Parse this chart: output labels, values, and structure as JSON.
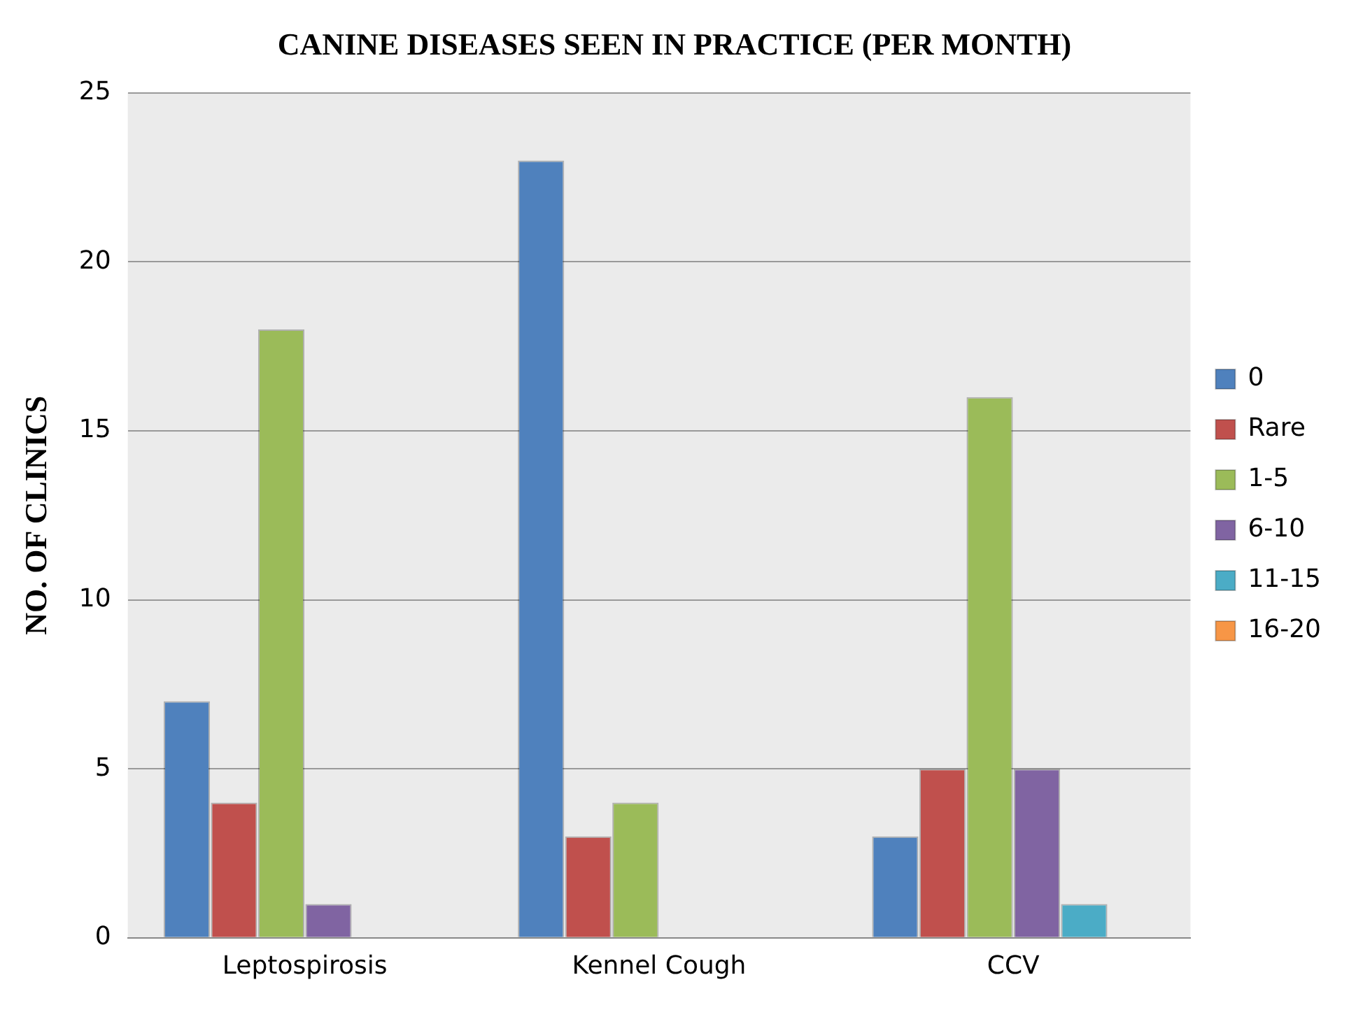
{
  "chart_data": {
    "type": "bar",
    "title": "CANINE DISEASES SEEN IN PRACTICE (PER MONTH)",
    "ylabel": "NO. OF CLINICS",
    "categories": [
      "Leptospirosis",
      "Kennel Cough",
      "CCV"
    ],
    "series": [
      {
        "name": "0",
        "color": "#4f81bd",
        "values": [
          7,
          23,
          3
        ]
      },
      {
        "name": "Rare",
        "color": "#c0504d",
        "values": [
          4,
          3,
          5
        ]
      },
      {
        "name": "1-5",
        "color": "#9bbb59",
        "values": [
          18,
          4,
          16
        ]
      },
      {
        "name": "6-10",
        "color": "#8064a2",
        "values": [
          1,
          0,
          5
        ]
      },
      {
        "name": "11-15",
        "color": "#4bacc6",
        "values": [
          0,
          0,
          1
        ]
      },
      {
        "name": "16-20",
        "color": "#f79646",
        "values": [
          0,
          0,
          0
        ]
      }
    ],
    "ylim": [
      0,
      25
    ],
    "yticks": [
      0,
      5,
      10,
      15,
      20,
      25
    ],
    "grid": "y",
    "legend": "right"
  }
}
